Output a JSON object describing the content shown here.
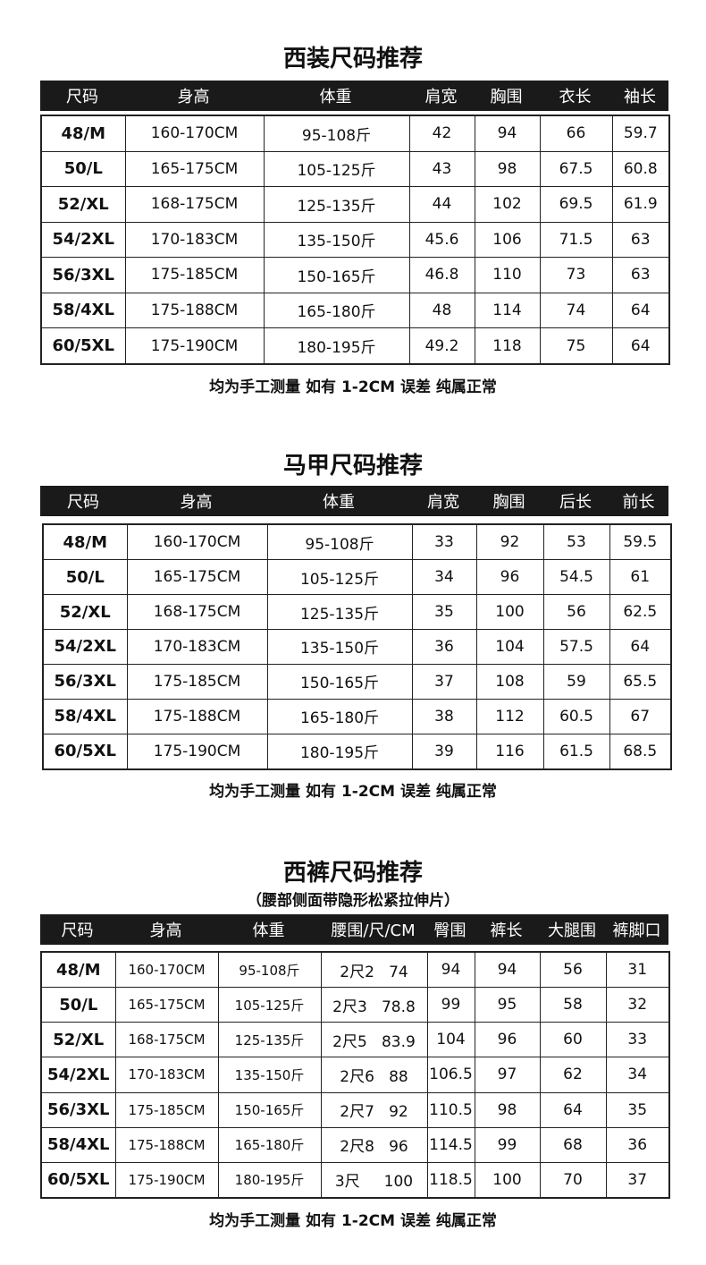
{
  "tables": [
    {
      "title": "西装尺码推荐",
      "headers": [
        "尺码",
        "身高",
        "体重",
        "肩宽",
        "胸围",
        "衣长",
        "袖长"
      ],
      "rows": [
        [
          "48/M",
          "160-170CM",
          "95-108斤",
          "42",
          "94",
          "66",
          "59.7"
        ],
        [
          "50/L",
          "165-175CM",
          "105-125斤",
          "43",
          "98",
          "67.5",
          "60.8"
        ],
        [
          "52/XL",
          "168-175CM",
          "125-135斤",
          "44",
          "102",
          "69.5",
          "61.9"
        ],
        [
          "54/2XL",
          "170-183CM",
          "135-150斤",
          "45.6",
          "106",
          "71.5",
          "63"
        ],
        [
          "56/3XL",
          "175-185CM",
          "150-165斤",
          "46.8",
          "110",
          "73",
          "63"
        ],
        [
          "58/4XL",
          "175-188CM",
          "165-180斤",
          "48",
          "114",
          "74",
          "64"
        ],
        [
          "60/5XL",
          "175-190CM",
          "180-195斤",
          "49.2",
          "118",
          "75",
          "64"
        ]
      ],
      "note": "均为手工测量 如有 1-2CM 误差 纯属正常"
    },
    {
      "title": "马甲尺码推荐",
      "headers": [
        "尺码",
        "身高",
        "体重",
        "肩宽",
        "胸围",
        "后长",
        "前长"
      ],
      "rows": [
        [
          "48/M",
          "160-170CM",
          "95-108斤",
          "33",
          "92",
          "53",
          "59.5"
        ],
        [
          "50/L",
          "165-175CM",
          "105-125斤",
          "34",
          "96",
          "54.5",
          "61"
        ],
        [
          "52/XL",
          "168-175CM",
          "125-135斤",
          "35",
          "100",
          "56",
          "62.5"
        ],
        [
          "54/2XL",
          "170-183CM",
          "135-150斤",
          "36",
          "104",
          "57.5",
          "64"
        ],
        [
          "56/3XL",
          "175-185CM",
          "150-165斤",
          "37",
          "108",
          "59",
          "65.5"
        ],
        [
          "58/4XL",
          "175-188CM",
          "165-180斤",
          "38",
          "112",
          "60.5",
          "67"
        ],
        [
          "60/5XL",
          "175-190CM",
          "180-195斤",
          "39",
          "116",
          "61.5",
          "68.5"
        ]
      ],
      "note": "均为手工测量 如有 1-2CM 误差 纯属正常"
    },
    {
      "title": "西裤尺码推荐",
      "subtitle": "（腰部侧面带隐形松紧拉伸片）",
      "headers": [
        "尺码",
        "身高",
        "体重",
        "腰围/尺/CM",
        "臀围",
        "裤长",
        "大腿围",
        "裤脚口"
      ],
      "rows": [
        [
          "48/M",
          "160-170CM",
          "95-108斤",
          "2尺2   74",
          "94",
          "94",
          "56",
          "31"
        ],
        [
          "50/L",
          "165-175CM",
          "105-125斤",
          "2尺3   78.8",
          "99",
          "95",
          "58",
          "32"
        ],
        [
          "52/XL",
          "168-175CM",
          "125-135斤",
          "2尺5   83.9",
          "104",
          "96",
          "60",
          "33"
        ],
        [
          "54/2XL",
          "170-183CM",
          "135-150斤",
          "2尺6   88",
          "106.5",
          "97",
          "62",
          "34"
        ],
        [
          "56/3XL",
          "175-185CM",
          "150-165斤",
          "2尺7   92",
          "110.5",
          "98",
          "64",
          "35"
        ],
        [
          "58/4XL",
          "175-188CM",
          "165-180斤",
          "2尺8   96",
          "114.5",
          "99",
          "68",
          "36"
        ],
        [
          "60/5XL",
          "175-190CM",
          "180-195斤",
          "3尺     100",
          "118.5",
          "100",
          "70",
          "37"
        ]
      ],
      "note": "均为手工测量 如有 1-2CM 误差 纯属正常"
    }
  ]
}
